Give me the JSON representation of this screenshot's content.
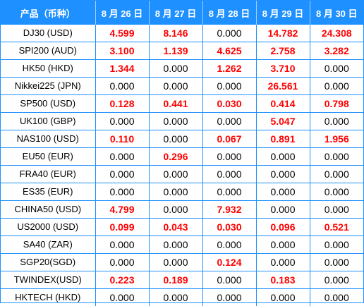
{
  "table": {
    "headers": [
      "产品（币种）",
      "8 月 26 日",
      "8 月 27 日",
      "8 月 28 日",
      "8 月 29 日",
      "8 月 30 日"
    ],
    "rows": [
      {
        "product": "DJ30 (USD)",
        "values": [
          "4.599",
          "8.146",
          "0.000",
          "14.782",
          "24.308"
        ]
      },
      {
        "product": "SPI200 (AUD)",
        "values": [
          "3.100",
          "1.139",
          "4.625",
          "2.758",
          "3.282"
        ]
      },
      {
        "product": "HK50 (HKD)",
        "values": [
          "1.344",
          "0.000",
          "1.262",
          "3.710",
          "0.000"
        ]
      },
      {
        "product": "Nikkei225 (JPN)",
        "values": [
          "0.000",
          "0.000",
          "0.000",
          "26.561",
          "0.000"
        ]
      },
      {
        "product": "SP500 (USD)",
        "values": [
          "0.128",
          "0.441",
          "0.030",
          "0.414",
          "0.798"
        ]
      },
      {
        "product": "UK100 (GBP)",
        "values": [
          "0.000",
          "0.000",
          "0.000",
          "5.047",
          "0.000"
        ]
      },
      {
        "product": "NAS100 (USD)",
        "values": [
          "0.110",
          "0.000",
          "0.067",
          "0.891",
          "1.956"
        ]
      },
      {
        "product": "EU50 (EUR)",
        "values": [
          "0.000",
          "0.296",
          "0.000",
          "0.000",
          "0.000"
        ]
      },
      {
        "product": "FRA40 (EUR)",
        "values": [
          "0.000",
          "0.000",
          "0.000",
          "0.000",
          "0.000"
        ]
      },
      {
        "product": "ES35 (EUR)",
        "values": [
          "0.000",
          "0.000",
          "0.000",
          "0.000",
          "0.000"
        ]
      },
      {
        "product": "CHINA50 (USD)",
        "values": [
          "4.799",
          "0.000",
          "7.932",
          "0.000",
          "0.000"
        ]
      },
      {
        "product": "US2000 (USD)",
        "values": [
          "0.099",
          "0.043",
          "0.030",
          "0.096",
          "0.521"
        ]
      },
      {
        "product": "SA40 (ZAR)",
        "values": [
          "0.000",
          "0.000",
          "0.000",
          "0.000",
          "0.000"
        ]
      },
      {
        "product": "SGP20(SGD)",
        "values": [
          "0.000",
          "0.000",
          "0.124",
          "0.000",
          "0.000"
        ]
      },
      {
        "product": "TWINDEX(USD)",
        "values": [
          "0.223",
          "0.189",
          "0.000",
          "0.183",
          "0.000"
        ]
      },
      {
        "product": "HKTECH (HKD)",
        "values": [
          "0.000",
          "0.000",
          "0.000",
          "0.000",
          "0.000"
        ]
      }
    ]
  },
  "colors": {
    "header_bg": "#1e90ff",
    "header_text": "#ffffff",
    "border": "#1e90ff",
    "positive_value": "#ff0000",
    "zero_value": "#000000"
  }
}
